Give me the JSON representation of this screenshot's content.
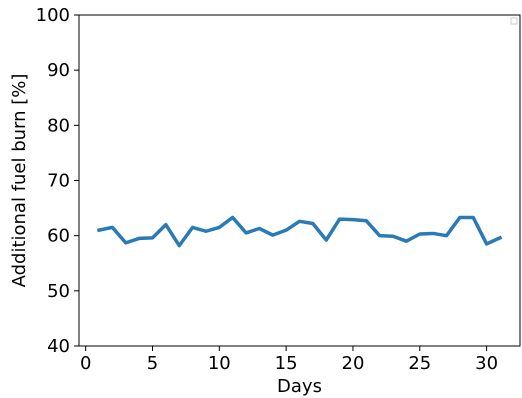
{
  "chart_data": {
    "type": "line",
    "xlabel": "Days",
    "ylabel": "Additional fuel burn [%]",
    "xlim": [
      -0.5,
      32.5
    ],
    "ylim": [
      40,
      100
    ],
    "xticks": [
      0,
      5,
      10,
      15,
      20,
      25,
      30
    ],
    "yticks": [
      40,
      50,
      60,
      70,
      80,
      90,
      100
    ],
    "grid": false,
    "legend": "top-right",
    "series": [
      {
        "color": "#2a7ab5",
        "x": [
          1,
          2,
          3,
          4,
          5,
          6,
          7,
          8,
          9,
          10,
          11,
          12,
          13,
          14,
          15,
          16,
          17,
          18,
          19,
          20,
          21,
          22,
          23,
          24,
          25,
          26,
          27,
          28,
          29,
          30,
          31
        ],
        "y": [
          61.0,
          61.5,
          58.7,
          59.5,
          59.6,
          62.0,
          58.2,
          61.5,
          60.8,
          61.5,
          63.3,
          60.5,
          61.3,
          60.1,
          61.0,
          62.6,
          62.2,
          59.2,
          63.0,
          62.9,
          62.7,
          60.0,
          59.9,
          59.0,
          60.3,
          60.4,
          60.0,
          63.3,
          63.3,
          58.5,
          59.6
        ]
      }
    ]
  }
}
